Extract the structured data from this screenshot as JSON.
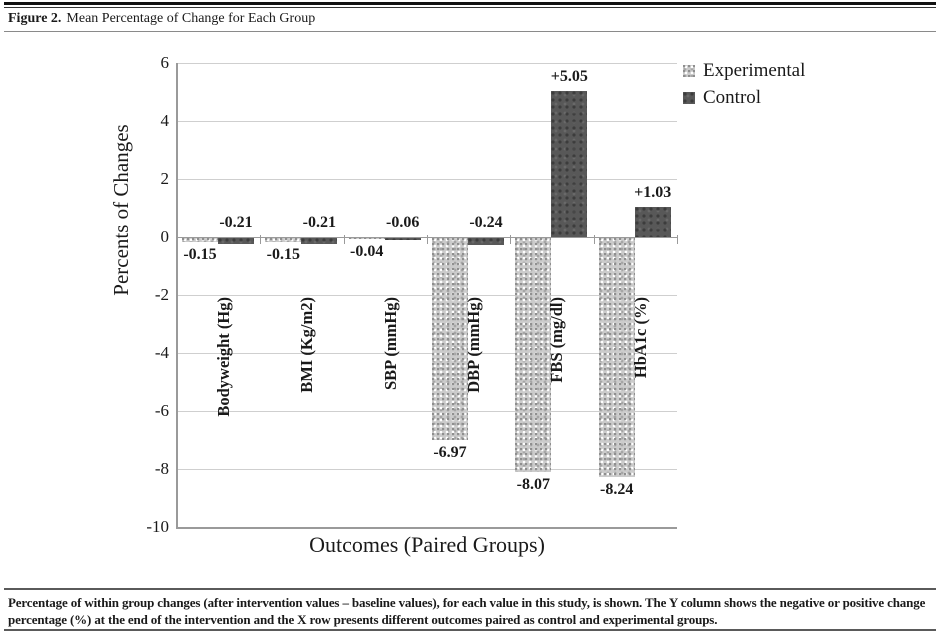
{
  "header": {
    "label": "Figure 2.",
    "title": "Mean Percentage of Change for Each Group"
  },
  "caption": {
    "lines": [
      "Percentage of within group changes (after intervention values – baseline values), for each value in this study, is shown. The Y column shows the negative or positive change",
      "percentage (%) at the end of the intervention and the X row presents different outcomes paired as control and experimental groups."
    ]
  },
  "chart_data": {
    "type": "bar",
    "title": "",
    "xlabel": "Outcomes (Paired Groups)",
    "ylabel": "Percents of Changes",
    "ylim": [
      -10,
      6
    ],
    "yticks": [
      6,
      4,
      2,
      0,
      -2,
      -4,
      -6,
      -8,
      -10
    ],
    "grid": true,
    "legend_position": "top-right",
    "categories": [
      "Bodyweight (Hg)",
      "BMI (Kg/m2)",
      "SBP (mmHg)",
      "DBP (mmHg)",
      "FBS (mg/dl)",
      "HbA1c (%)"
    ],
    "series": [
      {
        "name": "Experimental",
        "pattern": "speckled-light",
        "values": [
          -0.15,
          -0.15,
          -0.04,
          -6.97,
          -8.07,
          -8.24
        ],
        "data_labels": [
          "-0.15",
          "-0.15",
          "-0.04",
          "-6.97",
          "-8.07",
          "-8.24"
        ]
      },
      {
        "name": "Control",
        "pattern": "solid-dark",
        "values": [
          -0.21,
          -0.21,
          -0.06,
          -0.24,
          5.05,
          1.03
        ],
        "data_labels": [
          "-0.21",
          "-0.21",
          "-0.06",
          "-0.24",
          "+5.05",
          "+1.03"
        ]
      }
    ],
    "colors": {
      "experimental_fill": "#cbcbcb",
      "control_fill": "#585858",
      "gridline": "#cfcfcf",
      "axis_line": "#9a9a9a",
      "label_text": "#1a1a1a"
    }
  }
}
